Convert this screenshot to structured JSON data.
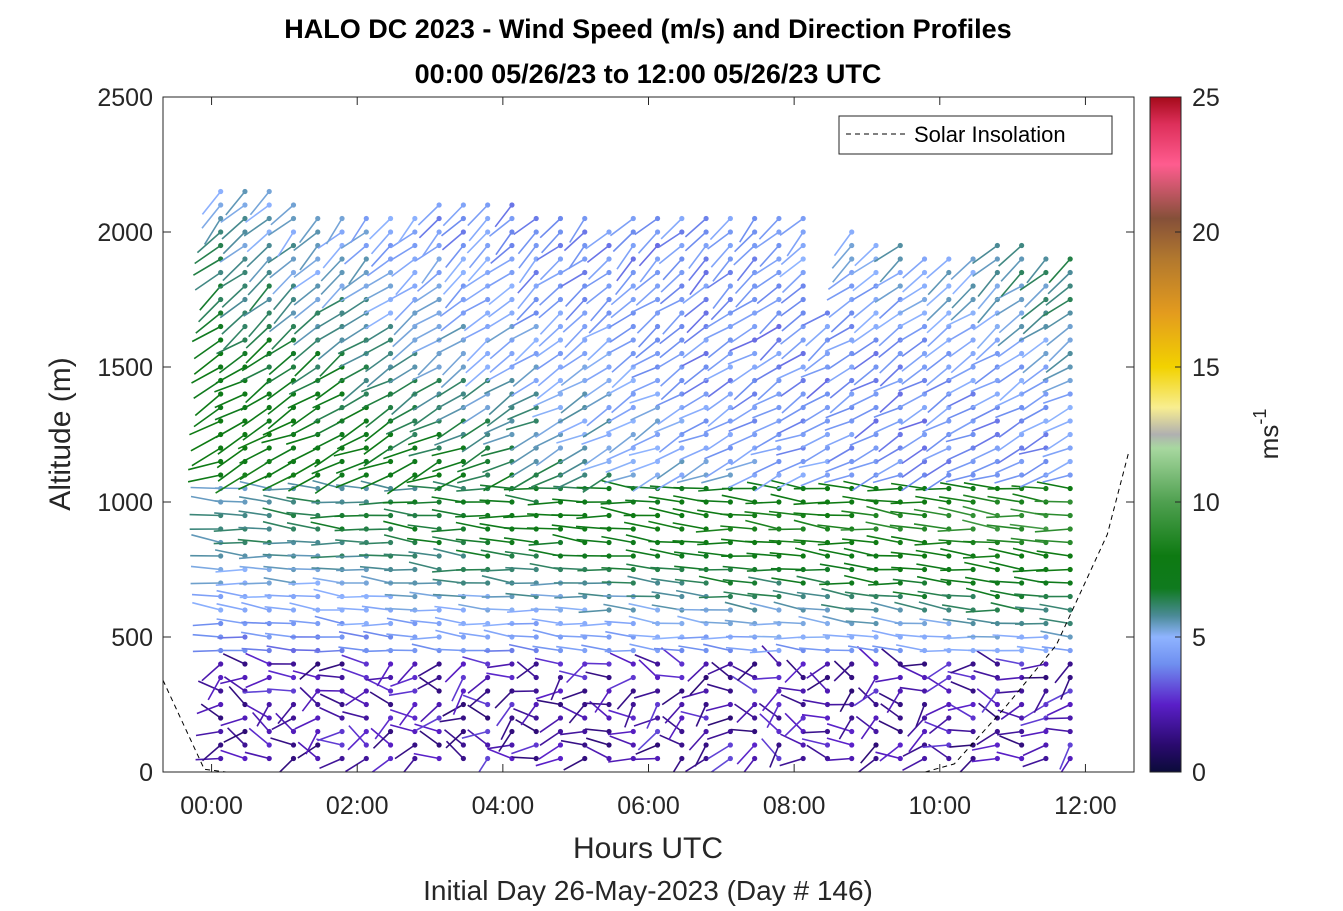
{
  "chart_data": {
    "type": "wind-barb-profile",
    "title": "HALO DC 2023 - Wind Speed (m/s) and Direction Profiles",
    "subtitle": "00:00 05/26/23 to 12:00 05/26/23  UTC",
    "xlabel": "Hours UTC",
    "xlabel_note": "Initial Day 26-May-2023 (Day # 146)",
    "ylabel": "Altitude (m)",
    "xlim_hours": [
      -0.667,
      12.667
    ],
    "ylim": [
      0,
      2500
    ],
    "x_ticks": [
      {
        "hour": 0,
        "label": "00:00"
      },
      {
        "hour": 2,
        "label": "02:00"
      },
      {
        "hour": 4,
        "label": "04:00"
      },
      {
        "hour": 6,
        "label": "06:00"
      },
      {
        "hour": 8,
        "label": "08:00"
      },
      {
        "hour": 10,
        "label": "10:00"
      },
      {
        "hour": 12,
        "label": "12:00"
      }
    ],
    "y_ticks": [
      0,
      500,
      1000,
      1500,
      2000,
      2500
    ],
    "legend": {
      "entries": [
        "Solar Insolation"
      ],
      "position": "top-right"
    },
    "colorbar": {
      "label": "ms-1",
      "label_base": "ms",
      "label_exp": "-1",
      "range": [
        0,
        25
      ],
      "ticks": [
        0,
        5,
        10,
        15,
        20,
        25
      ],
      "stops": [
        {
          "v": 0.0,
          "c": "#0b0b3a"
        },
        {
          "v": 1.0,
          "c": "#2a0a6e"
        },
        {
          "v": 2.5,
          "c": "#5a1fc8"
        },
        {
          "v": 4.0,
          "c": "#6f8ff0"
        },
        {
          "v": 5.0,
          "c": "#8fb4ff"
        },
        {
          "v": 5.8,
          "c": "#4a8a95"
        },
        {
          "v": 6.8,
          "c": "#0f7a1e"
        },
        {
          "v": 8.0,
          "c": "#0e7a12"
        },
        {
          "v": 10.0,
          "c": "#4fa050"
        },
        {
          "v": 12.0,
          "c": "#a8d8a0"
        },
        {
          "v": 12.5,
          "c": "#b0b0b0"
        },
        {
          "v": 13.5,
          "c": "#f8ee90"
        },
        {
          "v": 15.0,
          "c": "#f2d200"
        },
        {
          "v": 17.0,
          "c": "#e39b1e"
        },
        {
          "v": 19.0,
          "c": "#b2782e"
        },
        {
          "v": 20.5,
          "c": "#855039"
        },
        {
          "v": 22.5,
          "c": "#ff5c8f"
        },
        {
          "v": 24.0,
          "c": "#dd2f5a"
        },
        {
          "v": 25.0,
          "c": "#a50a1a"
        }
      ]
    },
    "solar_insolation": {
      "style": "dashed",
      "color": "#000000",
      "points": [
        [
          -0.667,
          340
        ],
        [
          -0.1,
          10
        ],
        [
          0.2,
          0
        ],
        [
          9.8,
          0
        ],
        [
          10.2,
          30
        ],
        [
          10.9,
          240
        ],
        [
          11.6,
          470
        ],
        [
          12.3,
          880
        ],
        [
          12.6,
          1190
        ]
      ]
    },
    "barbs": {
      "time_start_hour": 0.125,
      "time_step_hour": 0.3333,
      "profiles": 36,
      "altitude_start": 50,
      "altitude_step": 50,
      "top_profile_m": [
        2180,
        2180,
        2150,
        2100,
        2080,
        2060,
        2050,
        2060,
        2080,
        2100,
        2110,
        2120,
        2130,
        2090,
        2070,
        2060,
        2040,
        2050,
        2060,
        2060,
        2060,
        2070,
        2080,
        2090,
        2080,
        1730,
        2000,
        1980,
        1960,
        1930,
        1920,
        1940,
        1960,
        1950,
        1920,
        1900
      ],
      "low_level_jet": {
        "height_m": 920,
        "speed_mps": 5.6
      },
      "boundary_layer_speed_mps": 2.2,
      "upper_speed_mps": 7.5
    }
  }
}
